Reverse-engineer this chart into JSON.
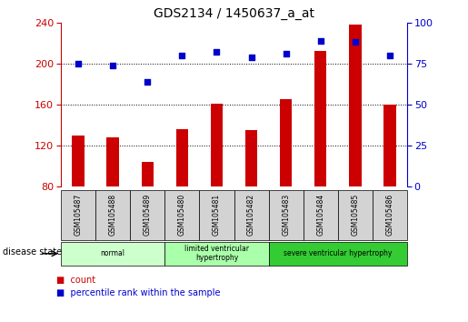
{
  "title": "GDS2134 / 1450637_a_at",
  "samples": [
    "GSM105487",
    "GSM105488",
    "GSM105489",
    "GSM105480",
    "GSM105481",
    "GSM105482",
    "GSM105483",
    "GSM105484",
    "GSM105485",
    "GSM105486"
  ],
  "counts": [
    130,
    128,
    104,
    136,
    161,
    135,
    165,
    212,
    238,
    160
  ],
  "percentiles": [
    75,
    74,
    64,
    80,
    82,
    79,
    81,
    89,
    88,
    80
  ],
  "ymin": 80,
  "ymax": 240,
  "yticks": [
    80,
    120,
    160,
    200,
    240
  ],
  "y2min": 0,
  "y2max": 100,
  "y2ticks": [
    0,
    25,
    50,
    75,
    100
  ],
  "bar_color": "#cc0000",
  "dot_color": "#0000cc",
  "groups": [
    {
      "label": "normal",
      "start": 0,
      "end": 3,
      "color": "#ccffcc"
    },
    {
      "label": "limited ventricular\nhypertrophy",
      "start": 3,
      "end": 6,
      "color": "#aaffaa"
    },
    {
      "label": "severe ventricular hypertrophy",
      "start": 6,
      "end": 10,
      "color": "#33cc33"
    }
  ],
  "group_label": "disease state",
  "legend_count": "count",
  "legend_pct": "percentile rank within the sample",
  "bg_color": "#ffffff",
  "title_color": "#000000",
  "left_axis_color": "#cc0000",
  "right_axis_color": "#0000cc",
  "xlabel_bg_color": "#d3d3d3"
}
